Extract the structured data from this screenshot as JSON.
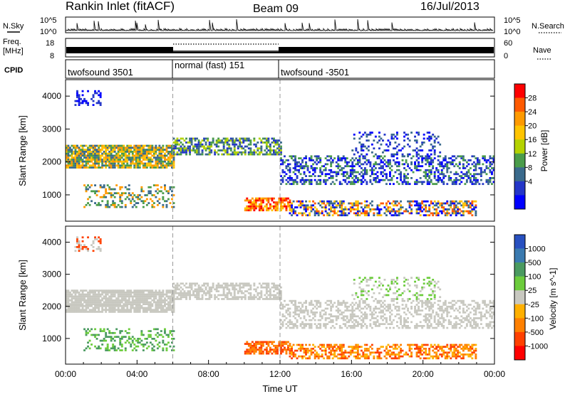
{
  "header": {
    "title": "Rankin Inlet (fitACF)",
    "beam": "Beam 09",
    "date": "16/Jul/2013"
  },
  "nsky_panel": {
    "label": "N.Sky",
    "right_label": "N.Search",
    "yticks": [
      "10^5",
      "10^0"
    ]
  },
  "freq_panel": {
    "label_line1": "Freq.",
    "label_line2": "[MHz]",
    "left_ticks": [
      "18",
      "8"
    ],
    "right_ticks": [
      "60",
      "0"
    ],
    "right_label": "Nave"
  },
  "cpid_panel": {
    "label": "CPID",
    "segments": [
      {
        "label": "twofsound 3501",
        "start": 0,
        "end": 6
      },
      {
        "label": "normal (fast) 151",
        "start": 6,
        "end": 12
      },
      {
        "label": "twofsound -3501",
        "start": 12,
        "end": 24
      }
    ]
  },
  "chart_data": [
    {
      "type": "heatmap",
      "name": "power",
      "ylabel": "Slant Range [km]",
      "yticks": [
        1000,
        2000,
        3000,
        4000
      ],
      "ylim": [
        200,
        4500
      ],
      "xlim": [
        0,
        24
      ],
      "colorbar": {
        "label": "Power [dB]",
        "ticks": [
          "28",
          "24",
          "20",
          "16",
          "12",
          "8",
          "4"
        ],
        "colors": [
          "#ff0000",
          "#ff5a00",
          "#ff9a00",
          "#ffc400",
          "#b4d200",
          "#4a9c4a",
          "#3a6a8c",
          "#2436c8",
          "#0000ff"
        ]
      }
    },
    {
      "type": "heatmap",
      "name": "velocity",
      "ylabel": "Slant Range [km]",
      "yticks": [
        1000,
        2000,
        3000,
        4000
      ],
      "ylim": [
        200,
        4500
      ],
      "xlim": [
        0,
        24
      ],
      "xticks": [
        "00:00",
        "04:00",
        "08:00",
        "12:00",
        "16:00",
        "20:00",
        "00:00"
      ],
      "xlabel": "Time UT",
      "colorbar": {
        "label": "Velocity [m s^-1]",
        "ticks": [
          "1000",
          "500",
          "100",
          "25",
          "-25",
          "-100",
          "-500",
          "-1000"
        ],
        "colors": [
          "#2850c0",
          "#3a7ab0",
          "#4a9a60",
          "#6ccc3c",
          "#c8c8c0",
          "#ffb000",
          "#ff8000",
          "#ff4000",
          "#ff0000"
        ]
      }
    }
  ]
}
